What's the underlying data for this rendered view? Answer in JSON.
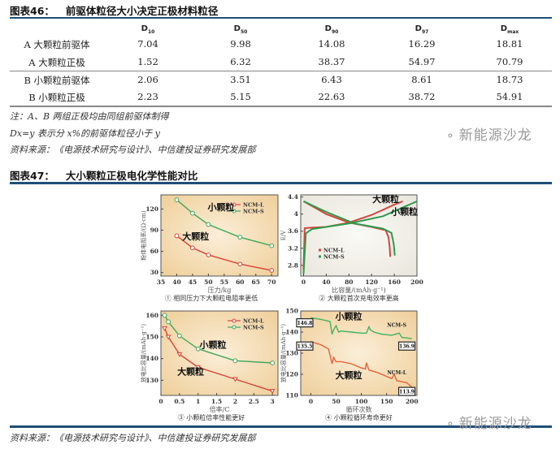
{
  "table46": {
    "number": "图表46：",
    "title": "前驱体粒径大小决定正极材料粒径",
    "columns": [
      {
        "base": "D",
        "sub": "10"
      },
      {
        "base": "D",
        "sub": "50"
      },
      {
        "base": "D",
        "sub": "90"
      },
      {
        "base": "D",
        "sub": "97"
      },
      {
        "base": "D",
        "sub": "max"
      }
    ],
    "rows": [
      {
        "label": "A 大颗粒前驱体",
        "values": [
          "7.04",
          "9.98",
          "14.08",
          "16.29",
          "18.81"
        ]
      },
      {
        "label": "A 大颗粒正极",
        "values": [
          "1.52",
          "6.32",
          "38.37",
          "54.97",
          "70.79"
        ]
      },
      {
        "label": "B 小颗粒前驱体",
        "values": [
          "2.06",
          "3.51",
          "6.43",
          "8.61",
          "18.73"
        ]
      },
      {
        "label": "B 小颗粒正极",
        "values": [
          "2.23",
          "5.15",
          "22.63",
          "38.72",
          "54.91"
        ]
      }
    ],
    "note1": "注：A、B 两组正极均由同组前驱体制得",
    "note2": "Dx=y 表示分 x%的前驱体粒径小于 y",
    "source": "资料来源：《电源技术研究与设计》、中信建投证券研究发展部"
  },
  "watermark": "新能源沙龙",
  "figure47": {
    "number": "图表47：",
    "title": "大小颗粒正极电化学性能对比",
    "source": "资料来源：《电源技术研究与设计》、中信建投证券研究发展部"
  },
  "chart_data": [
    {
      "type": "line",
      "caption": "① 相同压力下大颗粒电阻率更低",
      "xlabel": "压力/kg",
      "ylabel": "粉体电阻率/(Ω·cm)",
      "xlim": [
        35,
        72
      ],
      "ylim": [
        25,
        140
      ],
      "xticks": [
        35,
        40,
        45,
        50,
        55,
        60,
        65,
        70
      ],
      "yticks": [
        30,
        60,
        90,
        120
      ],
      "legend": "top-right",
      "background": "warm",
      "series": [
        {
          "name": "NCM-L",
          "color": "#d9443a",
          "marker": "circle",
          "x": [
            40,
            45,
            50,
            60,
            70
          ],
          "y": [
            82,
            65,
            55,
            42,
            33
          ]
        },
        {
          "name": "NCM-S",
          "color": "#3ea75c",
          "marker": "circle",
          "x": [
            40,
            45,
            50,
            60,
            70
          ],
          "y": [
            133,
            114,
            98,
            80,
            68
          ]
        }
      ],
      "annotations": [
        {
          "text": "小颗粒",
          "x": 54,
          "y": 118
        },
        {
          "text": "大颗粒",
          "x": 46,
          "y": 77
        }
      ]
    },
    {
      "type": "line",
      "caption": "② 大颗粒首次充电效率更高",
      "xlabel": "比容量/(mAh·g⁻¹)",
      "ylabel": "E/V",
      "xlim": [
        -5,
        200
      ],
      "ylim": [
        2.55,
        4.45
      ],
      "xticks": [
        0,
        40,
        80,
        120,
        160,
        200
      ],
      "yticks": [
        2.8,
        3.2,
        3.6,
        4.0,
        4.4
      ],
      "legend": "bottom-left",
      "background": "light",
      "series": [
        {
          "name": "NCM-L",
          "color": "#d9443a",
          "marker": "none",
          "x": [
            0,
            2,
            10,
            40,
            80,
            120,
            160,
            175
          ],
          "y": [
            2.7,
            3.67,
            3.68,
            3.7,
            3.8,
            3.98,
            4.22,
            4.3
          ]
        },
        {
          "name": "NCM-L",
          "color": "#d9443a",
          "marker": "none",
          "x": [
            0,
            40,
            80,
            120,
            145,
            150,
            152,
            153
          ],
          "y": [
            4.3,
            4.0,
            3.8,
            3.7,
            3.62,
            3.45,
            3.2,
            3.0
          ],
          "legend": false
        },
        {
          "name": "NCM-S",
          "color": "#2e9a4e",
          "marker": "none",
          "x": [
            0,
            4,
            15,
            80,
            140,
            200
          ],
          "y": [
            2.6,
            3.55,
            3.65,
            3.78,
            3.95,
            4.3
          ]
        },
        {
          "name": "NCM-S",
          "color": "#2e9a4e",
          "marker": "none",
          "x": [
            0,
            40,
            90,
            140,
            155,
            159,
            161
          ],
          "y": [
            4.3,
            4.05,
            3.78,
            3.66,
            3.56,
            3.3,
            3.03
          ],
          "legend": false
        }
      ],
      "annotations": [
        {
          "text": "大颗粒",
          "x": 145,
          "y": 4.28
        },
        {
          "text": "小颗粒",
          "x": 178,
          "y": 3.98
        }
      ]
    },
    {
      "type": "line",
      "caption": "③ 小颗粒倍率性能更好",
      "xlabel": "倍率/C",
      "ylabel": "放电比容量/(mAh·g⁻¹)",
      "xlim": [
        0,
        3.15
      ],
      "ylim": [
        123,
        162
      ],
      "xticks": [
        0.0,
        0.5,
        1.0,
        1.5,
        2.0,
        2.5,
        3.0
      ],
      "yticks": [
        130,
        140,
        150,
        160
      ],
      "legend": "top-right",
      "background": "warm",
      "series": [
        {
          "name": "NCM-L",
          "color": "#d9443a",
          "marker": "triangle",
          "x": [
            0.1,
            0.2,
            0.5,
            1,
            2,
            3
          ],
          "y": [
            154,
            150,
            142,
            136,
            130.5,
            125
          ]
        },
        {
          "name": "NCM-S",
          "color": "#3ea75c",
          "marker": "circle",
          "x": [
            0.1,
            0.2,
            0.5,
            1,
            2,
            3
          ],
          "y": [
            160,
            157,
            150.5,
            144.5,
            139,
            138
          ]
        }
      ],
      "annotations": [
        {
          "text": "小颗粒",
          "x": 1.4,
          "y": 145
        },
        {
          "text": "大颗粒",
          "x": 0.8,
          "y": 132.5
        }
      ]
    },
    {
      "type": "line",
      "caption": "④ 小颗粒循环寿命更好",
      "xlabel": "循环次数",
      "ylabel": "放电比容量/(mAh·g⁻¹)",
      "xlim": [
        -20,
        210
      ],
      "ylim": [
        110,
        150
      ],
      "xticks": [
        0,
        50,
        100,
        150,
        200
      ],
      "yticks": [
        110,
        120,
        130,
        140,
        150
      ],
      "legend": "none",
      "background": "warm",
      "series": [
        {
          "name": "NCM-S",
          "color": "#43b060",
          "marker": "none",
          "x": [
            0,
            20,
            38,
            42,
            45,
            50,
            55,
            60,
            80,
            100,
            110,
            115,
            118,
            125,
            140,
            160,
            175,
            180,
            200
          ],
          "y": [
            146.8,
            146,
            145,
            139,
            141,
            143,
            140,
            140.5,
            140,
            139.5,
            139.5,
            142.5,
            141,
            140,
            139,
            138.5,
            139.5,
            137.5,
            136.9
          ]
        },
        {
          "name": "NCM-L",
          "color": "#e8603a",
          "marker": "none",
          "x": [
            0,
            20,
            35,
            40,
            42,
            45,
            50,
            60,
            80,
            100,
            108,
            110,
            115,
            130,
            150,
            160,
            165,
            170,
            190,
            200
          ],
          "y": [
            135.5,
            134,
            132,
            127,
            125,
            128,
            126,
            126,
            125,
            123,
            122.5,
            125.5,
            122,
            121,
            119,
            118,
            120,
            117,
            116,
            113.9
          ]
        }
      ],
      "labels": [
        {
          "text": "146.8",
          "x": -12,
          "y": 144
        },
        {
          "text": "136.9",
          "x": 190,
          "y": 133
        },
        {
          "text": "135.5",
          "x": -12,
          "y": 133
        },
        {
          "text": "113.9",
          "x": 190,
          "y": 111.5
        }
      ],
      "series_labels": [
        {
          "text": "NCM-S",
          "x": 170,
          "y": 142.5
        },
        {
          "text": "NCM-L",
          "x": 170,
          "y": 120
        }
      ],
      "annotations": [
        {
          "text": "小颗粒",
          "x": 75,
          "y": 146
        },
        {
          "text": "大颗粒",
          "x": 75,
          "y": 118
        }
      ]
    }
  ]
}
